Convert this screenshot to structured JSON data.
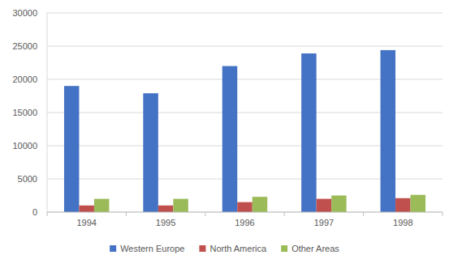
{
  "chart_data": {
    "type": "bar",
    "categories": [
      "1994",
      "1995",
      "1996",
      "1997",
      "1998"
    ],
    "series": [
      {
        "name": "Western Europe",
        "color": "#4472c4",
        "values": [
          19000,
          17900,
          22000,
          23900,
          24400
        ]
      },
      {
        "name": "North America",
        "color": "#c0504d",
        "values": [
          1000,
          1000,
          1500,
          2000,
          2100
        ]
      },
      {
        "name": "Other Areas",
        "color": "#9bbb59",
        "values": [
          2000,
          2000,
          2300,
          2500,
          2600
        ]
      }
    ],
    "ylim": [
      0,
      30000
    ],
    "yticks": [
      0,
      5000,
      10000,
      15000,
      20000,
      25000,
      30000
    ],
    "grid": true,
    "legend": "bottom"
  }
}
